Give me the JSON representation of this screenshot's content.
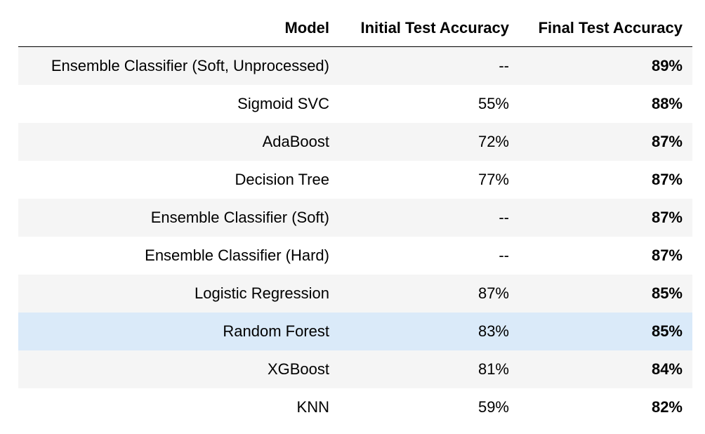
{
  "table": {
    "headers": {
      "model": "Model",
      "initial": "Initial Test Accuracy",
      "final": "Final Test Accuracy"
    },
    "rows": [
      {
        "model": "Ensemble Classifier (Soft, Unprocessed)",
        "initial": "--",
        "final": "89%"
      },
      {
        "model": "Sigmoid SVC",
        "initial": "55%",
        "final": "88%"
      },
      {
        "model": "AdaBoost",
        "initial": "72%",
        "final": "87%"
      },
      {
        "model": "Decision Tree",
        "initial": "77%",
        "final": "87%"
      },
      {
        "model": "Ensemble Classifier (Soft)",
        "initial": "--",
        "final": "87%"
      },
      {
        "model": "Ensemble Classifier (Hard)",
        "initial": "--",
        "final": "87%"
      },
      {
        "model": "Logistic Regression",
        "initial": "87%",
        "final": "85%"
      },
      {
        "model": "Random Forest",
        "initial": "83%",
        "final": "85%"
      },
      {
        "model": "XGBoost",
        "initial": "81%",
        "final": "84%"
      },
      {
        "model": "KNN",
        "initial": "59%",
        "final": "82%"
      }
    ],
    "highlight_color": "#daeaf9",
    "stripe_color": "#f5f5f5"
  }
}
